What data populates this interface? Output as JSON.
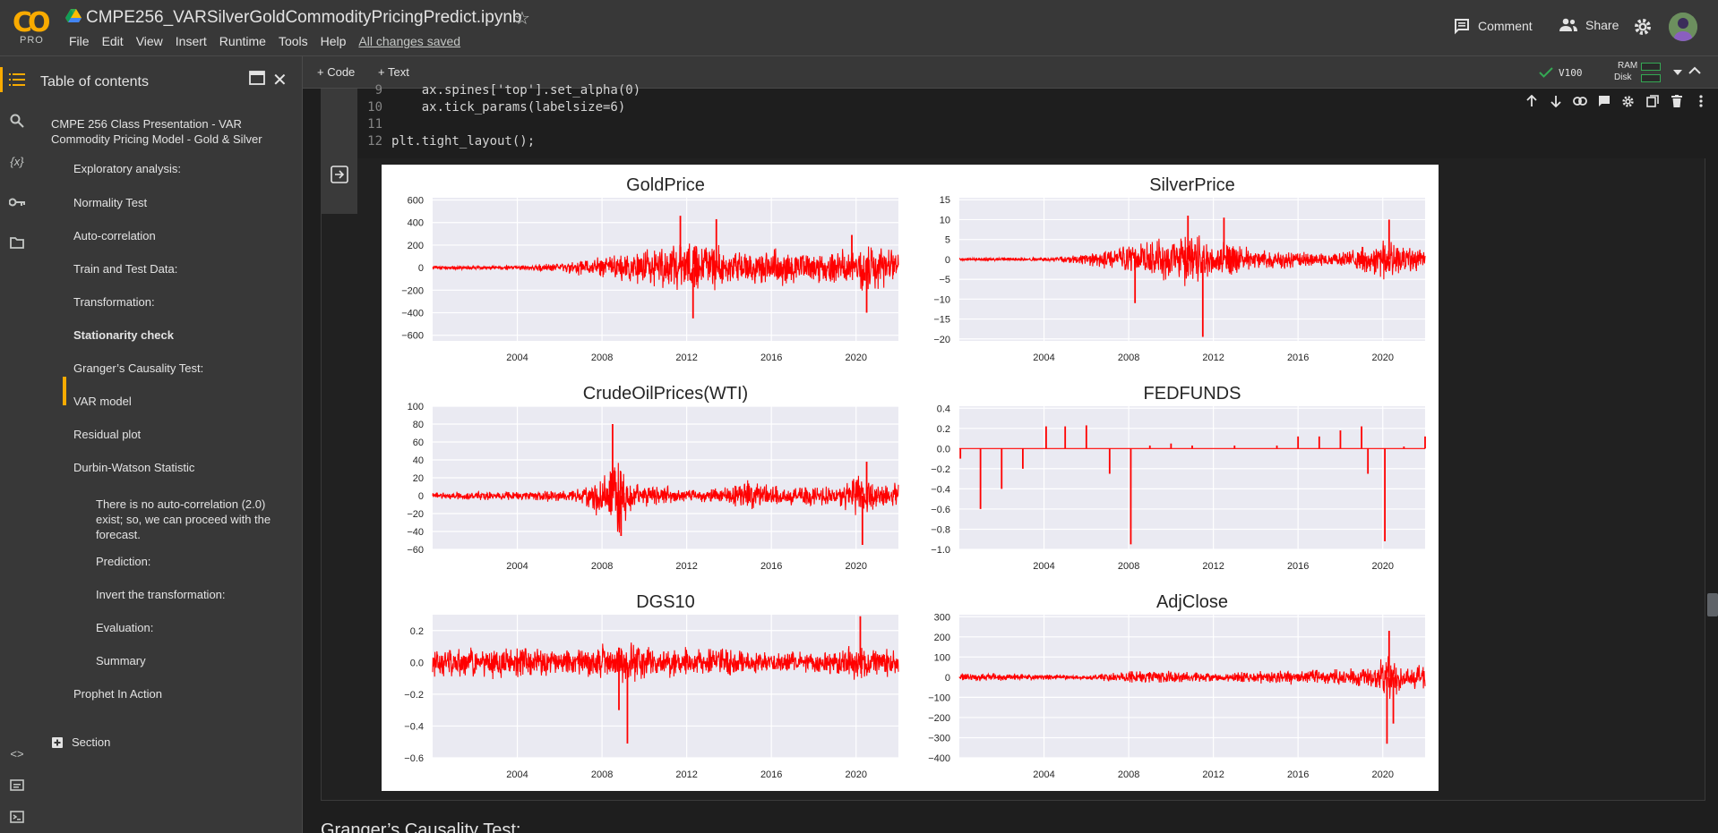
{
  "header": {
    "logo_text": "CO",
    "plan": "PRO",
    "notebook_title": "CMPE256_VARSilverGoldCommodityPricingPredict.ipynb",
    "menu": [
      "File",
      "Edit",
      "View",
      "Insert",
      "Runtime",
      "Tools",
      "Help"
    ],
    "save_status": "All changes saved",
    "comment_label": "Comment",
    "share_label": "Share"
  },
  "toolbar": {
    "add_code": "+ Code",
    "add_text": "+ Text",
    "runtime": "V100",
    "ram_label": "RAM",
    "disk_label": "Disk"
  },
  "toc": {
    "title": "Table of contents",
    "items": [
      {
        "label": "CMPE 256 Class Presentation - VAR Commodity Pricing Model - Gold & Silver",
        "level": 1
      },
      {
        "label": "Exploratory analysis:",
        "level": 2
      },
      {
        "label": "Normality Test",
        "level": 2
      },
      {
        "label": "Auto-correlation",
        "level": 2
      },
      {
        "label": "Train and Test Data:",
        "level": 2
      },
      {
        "label": "Transformation:",
        "level": 2
      },
      {
        "label": "Stationarity check",
        "level": 2,
        "active": true
      },
      {
        "label": "Granger’s Causality Test:",
        "level": 2
      },
      {
        "label": "VAR model",
        "level": 2
      },
      {
        "label": "Residual plot",
        "level": 2
      },
      {
        "label": "Durbin-Watson Statistic",
        "level": 2
      },
      {
        "label": "There is no auto-correlation (2.0) exist; so, we can proceed with the forecast.",
        "level": 3
      },
      {
        "label": "Prediction:",
        "level": 3
      },
      {
        "label": "Invert the transformation:",
        "level": 3
      },
      {
        "label": "Evaluation:",
        "level": 3
      },
      {
        "label": "Summary",
        "level": 3
      },
      {
        "label": "Prophet In Action",
        "level": 2
      }
    ],
    "section_label": "Section"
  },
  "code": {
    "lines": [
      {
        "n": "9",
        "text": "    ax.spines['top'].set_alpha(0)"
      },
      {
        "n": "10",
        "text": "    ax.tick_params(labelsize=6)"
      },
      {
        "n": "11",
        "text": ""
      },
      {
        "n": "12",
        "text": "plt.tight_layout();"
      }
    ]
  },
  "next_heading": "Granger’s Causality Test:",
  "colors": {
    "accent": "#f9ab00",
    "series": "#ff0000",
    "plot_bg": "#eaeaf2"
  },
  "chart_data": [
    {
      "type": "line",
      "title": "GoldPrice",
      "x_ticks": [
        "2004",
        "2008",
        "2012",
        "2016",
        "2020"
      ],
      "xlim": [
        2000,
        2022
      ],
      "y_ticks": [
        600,
        400,
        200,
        0,
        -200,
        -400,
        -600
      ],
      "ylim": [
        -650,
        620
      ],
      "grid": true,
      "seed": 11,
      "envelope": [
        [
          2000,
          18
        ],
        [
          2004,
          20
        ],
        [
          2006,
          45
        ],
        [
          2008,
          110
        ],
        [
          2010,
          180
        ],
        [
          2011.5,
          250
        ],
        [
          2012.5,
          300
        ],
        [
          2014,
          170
        ],
        [
          2016,
          190
        ],
        [
          2018,
          150
        ],
        [
          2019.5,
          180
        ],
        [
          2020.5,
          260
        ],
        [
          2022,
          170
        ]
      ],
      "spikes": [
        [
          2011.7,
          460
        ],
        [
          2012.3,
          -450
        ],
        [
          2013.4,
          430
        ],
        [
          2020.5,
          -400
        ],
        [
          2019.8,
          290
        ]
      ]
    },
    {
      "type": "line",
      "title": "SilverPrice",
      "x_ticks": [
        "2004",
        "2008",
        "2012",
        "2016",
        "2020"
      ],
      "xlim": [
        2000,
        2022
      ],
      "y_ticks": [
        15,
        10,
        5,
        0,
        -5,
        -10,
        -15,
        -20
      ],
      "ylim": [
        -20.5,
        15.5
      ],
      "grid": true,
      "seed": 23,
      "envelope": [
        [
          2000,
          0.4
        ],
        [
          2004,
          0.5
        ],
        [
          2006,
          1.5
        ],
        [
          2008,
          4
        ],
        [
          2010,
          6
        ],
        [
          2011,
          8
        ],
        [
          2012,
          4
        ],
        [
          2013,
          5
        ],
        [
          2014,
          2.5
        ],
        [
          2016,
          2.5
        ],
        [
          2018,
          1.8
        ],
        [
          2020,
          6
        ],
        [
          2021,
          3.5
        ],
        [
          2022,
          3
        ]
      ],
      "spikes": [
        [
          2011.5,
          -19.5
        ],
        [
          2010.8,
          11
        ],
        [
          2008.3,
          -11
        ],
        [
          2012.5,
          10.5
        ],
        [
          2020.3,
          10
        ]
      ]
    },
    {
      "type": "line",
      "title": "CrudeOilPrices(WTI)",
      "x_ticks": [
        "2004",
        "2008",
        "2012",
        "2016",
        "2020"
      ],
      "xlim": [
        2000,
        2022
      ],
      "y_ticks": [
        100,
        80,
        60,
        40,
        20,
        0,
        -20,
        -40,
        -60
      ],
      "ylim": [
        -60,
        100
      ],
      "grid": true,
      "seed": 37,
      "envelope": [
        [
          2000,
          4
        ],
        [
          2004,
          6
        ],
        [
          2007,
          8
        ],
        [
          2008,
          30
        ],
        [
          2008.8,
          50
        ],
        [
          2009.5,
          15
        ],
        [
          2011,
          12
        ],
        [
          2012,
          8
        ],
        [
          2014,
          10
        ],
        [
          2015,
          20
        ],
        [
          2016,
          12
        ],
        [
          2019,
          12
        ],
        [
          2020.3,
          30
        ],
        [
          2021,
          14
        ],
        [
          2022,
          15
        ]
      ],
      "spikes": [
        [
          2008.5,
          80
        ],
        [
          2008.9,
          -45
        ],
        [
          2020.3,
          -55
        ],
        [
          2020.5,
          38
        ]
      ]
    },
    {
      "type": "line",
      "title": "FEDFUNDS",
      "x_ticks": [
        "2004",
        "2008",
        "2012",
        "2016",
        "2020"
      ],
      "xlim": [
        2000,
        2022
      ],
      "y_ticks": [
        0.4,
        0.2,
        0.0,
        -0.2,
        -0.4,
        -0.6,
        -0.8,
        -1.0
      ],
      "ylim": [
        -1.0,
        0.42
      ],
      "grid": true,
      "seed": 0,
      "envelope": [
        [
          2000,
          0
        ],
        [
          2022,
          0
        ]
      ],
      "spikes": [
        [
          2000.05,
          -0.1
        ],
        [
          2001,
          -0.6
        ],
        [
          2002,
          -0.4
        ],
        [
          2003,
          -0.2
        ],
        [
          2004.1,
          0.22
        ],
        [
          2005,
          0.22
        ],
        [
          2006,
          0.23
        ],
        [
          2007.1,
          -0.25
        ],
        [
          2008.1,
          -0.95
        ],
        [
          2009,
          0.03
        ],
        [
          2010,
          0.05
        ],
        [
          2011,
          0.03
        ],
        [
          2013,
          0.03
        ],
        [
          2015,
          0.03
        ],
        [
          2016,
          0.12
        ],
        [
          2017,
          0.12
        ],
        [
          2018,
          0.18
        ],
        [
          2019,
          0.22
        ],
        [
          2019.3,
          -0.25
        ],
        [
          2020.1,
          -0.92
        ],
        [
          2021,
          0.02
        ],
        [
          2022,
          0.12
        ]
      ]
    },
    {
      "type": "line",
      "title": "DGS10",
      "x_ticks": [
        "2004",
        "2008",
        "2012",
        "2016",
        "2020"
      ],
      "xlim": [
        2000,
        2022
      ],
      "y_ticks": [
        0.2,
        0.0,
        -0.2,
        -0.4,
        -0.6
      ],
      "ylim": [
        -0.6,
        0.3
      ],
      "grid": true,
      "seed": 51,
      "envelope": [
        [
          2000,
          0.1
        ],
        [
          2003,
          0.12
        ],
        [
          2006,
          0.08
        ],
        [
          2008,
          0.13
        ],
        [
          2009,
          0.14
        ],
        [
          2011,
          0.12
        ],
        [
          2013,
          0.1
        ],
        [
          2016,
          0.08
        ],
        [
          2018,
          0.07
        ],
        [
          2020,
          0.12
        ],
        [
          2022,
          0.09
        ]
      ],
      "spikes": [
        [
          2009.2,
          -0.51
        ],
        [
          2020.2,
          0.29
        ],
        [
          2008.8,
          -0.3
        ]
      ]
    },
    {
      "type": "line",
      "title": "AdjClose",
      "x_ticks": [
        "2004",
        "2008",
        "2012",
        "2016",
        "2020"
      ],
      "xlim": [
        2000,
        2022
      ],
      "y_ticks": [
        300,
        200,
        100,
        0,
        -100,
        -200,
        -300,
        -400
      ],
      "ylim": [
        -400,
        310
      ],
      "grid": true,
      "seed": 67,
      "envelope": [
        [
          2000,
          25
        ],
        [
          2004,
          15
        ],
        [
          2006,
          12
        ],
        [
          2008,
          35
        ],
        [
          2009,
          40
        ],
        [
          2011,
          30
        ],
        [
          2012,
          25
        ],
        [
          2015,
          35
        ],
        [
          2018,
          45
        ],
        [
          2019.5,
          50
        ],
        [
          2020.2,
          130
        ],
        [
          2021,
          60
        ],
        [
          2022,
          80
        ]
      ],
      "spikes": [
        [
          2020.2,
          -330
        ],
        [
          2020.3,
          230
        ],
        [
          2020.5,
          -230
        ]
      ]
    }
  ]
}
